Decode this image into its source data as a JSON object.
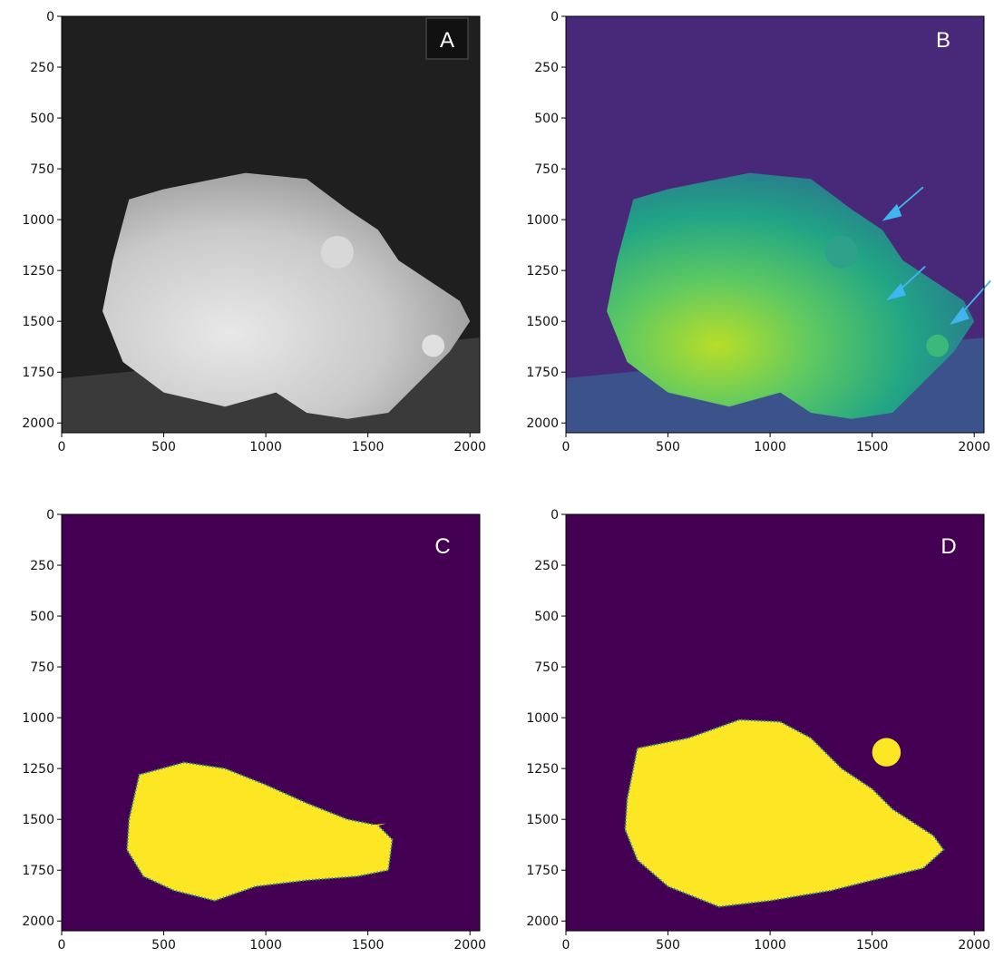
{
  "chart_data": [
    {
      "type": "image",
      "label": "A",
      "xlim": [
        0,
        2048
      ],
      "ylim": [
        0,
        2048
      ],
      "y_inverted": true,
      "xticks": [
        0,
        500,
        1000,
        1500,
        2000
      ],
      "yticks": [
        0,
        250,
        500,
        750,
        1000,
        1250,
        1500,
        1750,
        2000
      ]
    },
    {
      "type": "image",
      "label": "B",
      "xlim": [
        0,
        2048
      ],
      "ylim": [
        0,
        2048
      ],
      "y_inverted": true,
      "xticks": [
        0,
        500,
        1000,
        1500,
        2000
      ],
      "yticks": [
        0,
        250,
        500,
        750,
        1000,
        1250,
        1500,
        1750,
        2000
      ]
    },
    {
      "type": "image",
      "label": "C",
      "xlim": [
        0,
        2048
      ],
      "ylim": [
        0,
        2048
      ],
      "y_inverted": true,
      "xticks": [
        0,
        500,
        1000,
        1500,
        2000
      ],
      "yticks": [
        0,
        250,
        500,
        750,
        1000,
        1250,
        1500,
        1750,
        2000
      ]
    },
    {
      "type": "image",
      "label": "D",
      "xlim": [
        0,
        2048
      ],
      "ylim": [
        0,
        2048
      ],
      "y_inverted": true,
      "xticks": [
        0,
        500,
        1000,
        1500,
        2000
      ],
      "yticks": [
        0,
        250,
        500,
        750,
        1000,
        1250,
        1500,
        1750,
        2000
      ]
    }
  ]
}
